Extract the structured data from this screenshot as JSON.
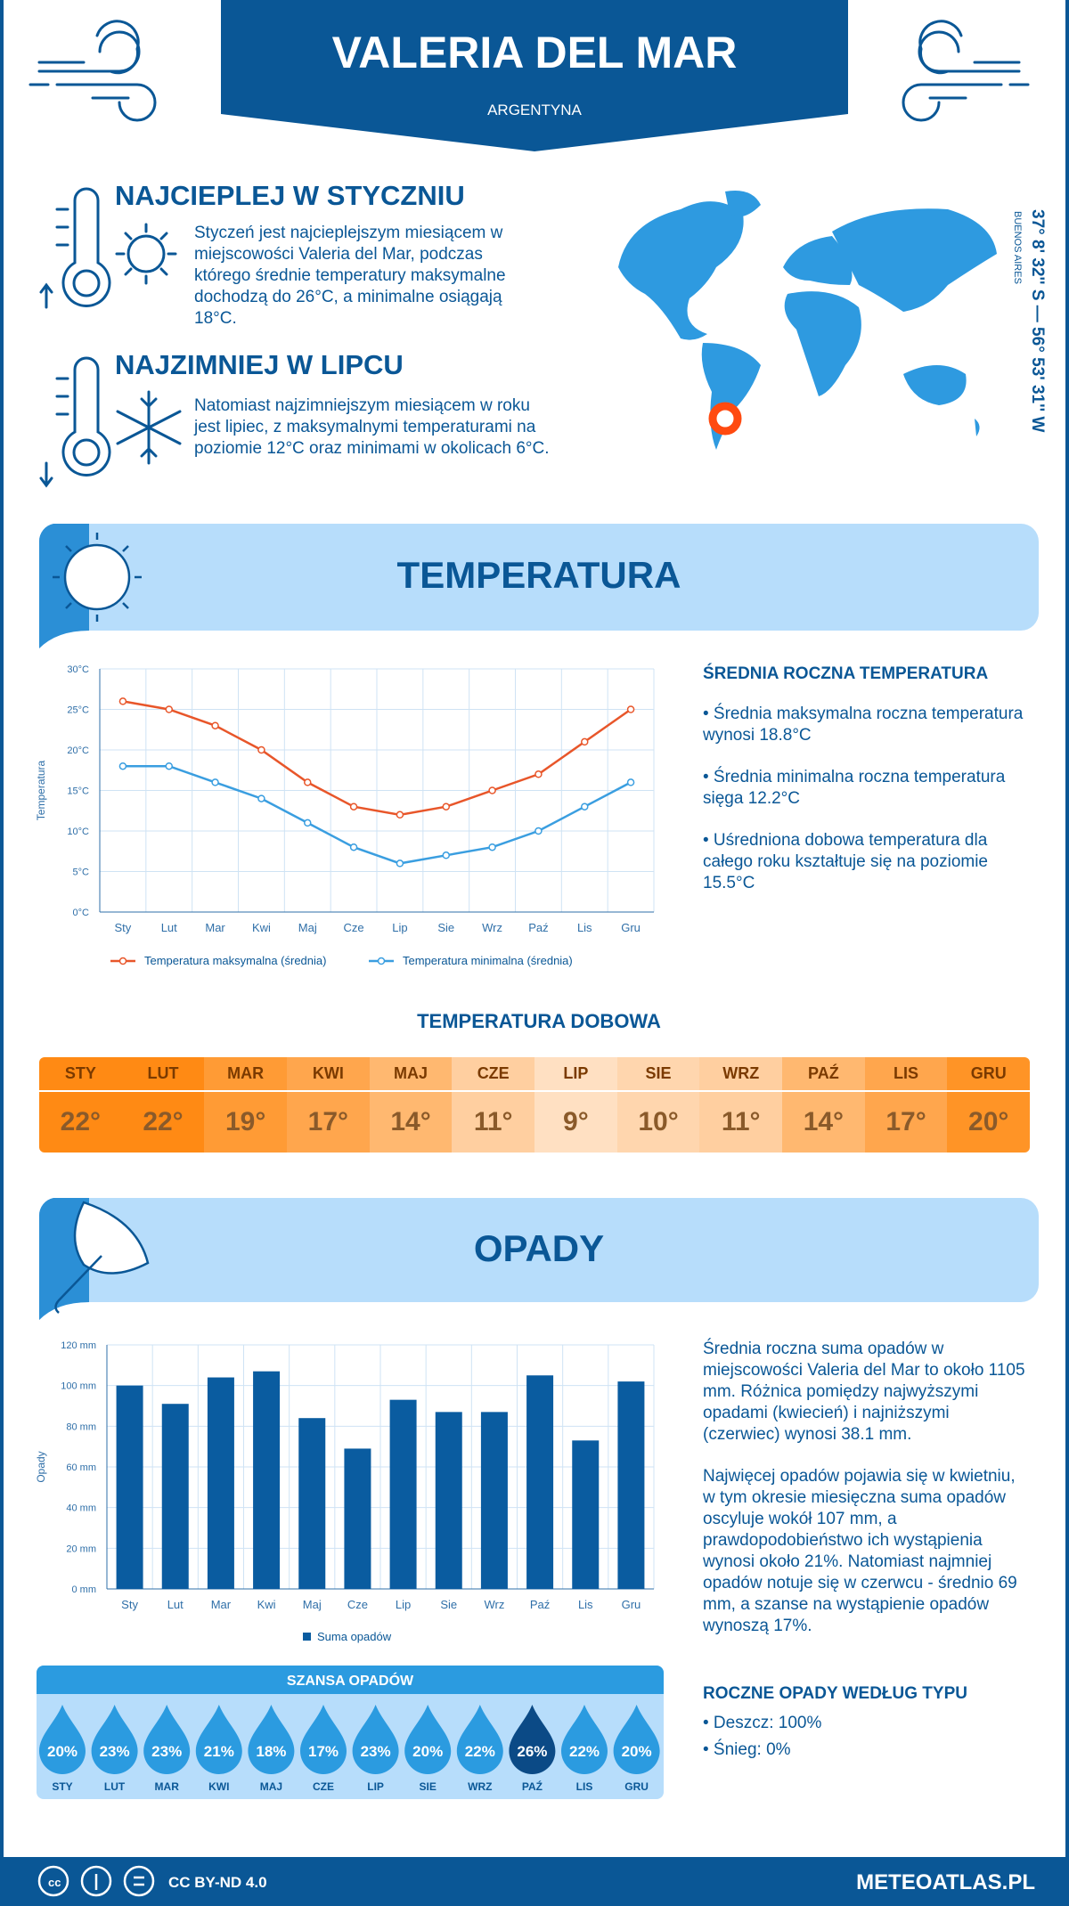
{
  "header": {
    "title": "VALERIA DEL MAR",
    "subtitle": "ARGENTYNA"
  },
  "warmest": {
    "title": "NAJCIEPLEJ W STYCZNIU",
    "text": "Styczeń jest najcieplejszym miesiącem w miejscowości Valeria del Mar, podczas którego średnie temperatury maksymalne dochodzą do 26°C, a minimalne osiągają 18°C."
  },
  "coldest": {
    "title": "NAJZIMNIEJ W LIPCU",
    "text": "Natomiast najzimniejszym miesiącem w roku jest lipiec, z maksymalnymi temperaturami na poziomie 12°C oraz minimami w okolicach 6°C."
  },
  "location": {
    "coordinates": "37° 8' 32'' S — 56° 53' 31'' W",
    "region": "BUENOS AIRES"
  },
  "temperature_section": {
    "title": "TEMPERATURA",
    "summary": {
      "title": "ŚREDNIA ROCZNA TEMPERATURA",
      "items": [
        "• Średnia maksymalna roczna temperatura wynosi 18.8°C",
        "• Średnia minimalna roczna temperatura sięga 12.2°C",
        "• Uśredniona dobowa temperatura dla całego roku kształtuje się na poziomie 15.5°C"
      ]
    }
  },
  "chart_data": [
    {
      "type": "line",
      "y_label": "Temperatura",
      "categories": [
        "Sty",
        "Lut",
        "Mar",
        "Kwi",
        "Maj",
        "Cze",
        "Lip",
        "Sie",
        "Wrz",
        "Paź",
        "Lis",
        "Gru"
      ],
      "series": [
        {
          "name": "Temperatura maksymalna (średnia)",
          "color": "#e8562a",
          "values": [
            26,
            25,
            23,
            20,
            16,
            13,
            12,
            13,
            15,
            17,
            21,
            25
          ]
        },
        {
          "name": "Temperatura minimalna (średnia)",
          "color": "#3a9ee0",
          "values": [
            18,
            18,
            16,
            14,
            11,
            8,
            6,
            7,
            8,
            10,
            13,
            16
          ]
        }
      ],
      "ylim": [
        0,
        30
      ],
      "yticks": [
        {
          "value": 0,
          "label": "0°C"
        },
        {
          "value": 5,
          "label": "5°C"
        },
        {
          "value": 10,
          "label": "10°C"
        },
        {
          "value": 15,
          "label": "15°C"
        },
        {
          "value": 20,
          "label": "20°C"
        },
        {
          "value": 25,
          "label": "25°C"
        },
        {
          "value": 30,
          "label": "30°C"
        }
      ],
      "grid": true
    },
    {
      "type": "bar",
      "y_label": "Opady",
      "categories": [
        "Sty",
        "Lut",
        "Mar",
        "Kwi",
        "Maj",
        "Cze",
        "Lip",
        "Sie",
        "Wrz",
        "Paź",
        "Lis",
        "Gru"
      ],
      "series": [
        {
          "name": "Suma opadów",
          "color": "#0a5ca0",
          "values": [
            100,
            91,
            104,
            107,
            84,
            69,
            93,
            87,
            87,
            105,
            73,
            102
          ]
        }
      ],
      "ylim": [
        0,
        120
      ],
      "yticks": [
        {
          "value": 0,
          "label": "0 mm"
        },
        {
          "value": 20,
          "label": "20 mm"
        },
        {
          "value": 40,
          "label": "40 mm"
        },
        {
          "value": 60,
          "label": "60 mm"
        },
        {
          "value": 80,
          "label": "80 mm"
        },
        {
          "value": 100,
          "label": "100 mm"
        },
        {
          "value": 120,
          "label": "120 mm"
        }
      ],
      "grid": true
    }
  ],
  "daily_temperature": {
    "title": "TEMPERATURA DOBOWA",
    "months": [
      "STY",
      "LUT",
      "MAR",
      "KWI",
      "MAJ",
      "CZE",
      "LIP",
      "SIE",
      "WRZ",
      "PAŹ",
      "LIS",
      "GRU"
    ],
    "values": [
      "22°",
      "22°",
      "19°",
      "17°",
      "14°",
      "11°",
      "9°",
      "10°",
      "11°",
      "14°",
      "17°",
      "20°"
    ],
    "colors": [
      "#ff8a14",
      "#ff8a14",
      "#ff9b35",
      "#ffa64d",
      "#ffb870",
      "#ffcfa0",
      "#ffe0c2",
      "#ffd6ae",
      "#ffcfa0",
      "#ffb870",
      "#ffa64d",
      "#ff9426"
    ]
  },
  "precipitation_section": {
    "title": "OPADY",
    "paragraphs": [
      "Średnia roczna suma opadów w miejscowości Valeria del Mar to około 1105 mm. Różnica pomiędzy najwyższymi opadami (kwiecień) i najniższymi (czerwiec) wynosi 38.1 mm.",
      "Najwięcej opadów pojawia się w kwietniu, w tym okresie miesięczna suma opadów oscyluje wokół 107 mm, a prawdopodobieństwo ich wystąpienia wynosi około 21%. Natomiast najmniej opadów notuje się w czerwcu - średnio 69 mm, a szanse na wystąpienie opadów wynoszą 17%."
    ],
    "types": {
      "title": "ROCZNE OPADY WEDŁUG TYPU",
      "items": [
        "• Deszcz: 100%",
        "• Śnieg: 0%"
      ]
    }
  },
  "precipitation_chance": {
    "title": "SZANSA OPADÓW",
    "months": [
      "STY",
      "LUT",
      "MAR",
      "KWI",
      "MAJ",
      "CZE",
      "LIP",
      "SIE",
      "WRZ",
      "PAŹ",
      "LIS",
      "GRU"
    ],
    "values": [
      "20%",
      "23%",
      "23%",
      "21%",
      "18%",
      "17%",
      "23%",
      "20%",
      "22%",
      "26%",
      "22%",
      "20%"
    ],
    "colors": [
      "#2b9be0",
      "#2b9be0",
      "#2b9be0",
      "#2b9be0",
      "#2b9be0",
      "#2b9be0",
      "#2b9be0",
      "#2b9be0",
      "#2b9be0",
      "#0b4a86",
      "#2b9be0",
      "#2b9be0"
    ]
  },
  "footer": {
    "license": "CC BY-ND 4.0",
    "site": "METEOATLAS.PL"
  }
}
